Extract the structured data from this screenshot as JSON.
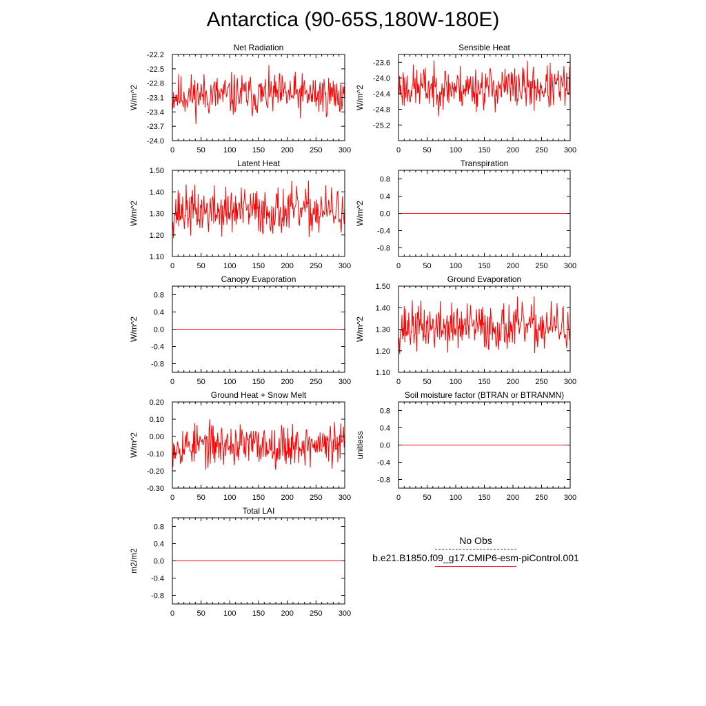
{
  "title": "Antarctica (90-65S,180W-180E)",
  "legend": {
    "obs_label": "No Obs",
    "obs_color": "#3a3a6a",
    "model_label": "b.e21.B1850.f09_g17.CMIP6-esm-piControl.001",
    "model_color": "#ff0000"
  },
  "line_color": "#ff0000",
  "chart_data": [
    {
      "type": "line",
      "title": "Net Radiation",
      "ylabel": "W/m^2",
      "xlim": [
        0,
        300
      ],
      "ylim": [
        -24.0,
        -22.2
      ],
      "xticks": [
        0,
        50,
        100,
        150,
        200,
        250,
        300
      ],
      "yticks": [
        -24.0,
        -23.7,
        -23.4,
        -23.1,
        -22.8,
        -22.5,
        -22.2
      ],
      "ytick_labels": [
        "-24.0",
        "-23.7",
        "-23.4",
        "-23.1",
        "-22.8",
        "-22.5",
        "-22.2"
      ],
      "series": [
        {
          "mean": -23.05,
          "amp": 0.22,
          "min": -23.85,
          "max": -22.32,
          "seed": 11
        }
      ]
    },
    {
      "type": "line",
      "title": "Sensible Heat",
      "ylabel": "W/m^2",
      "xlim": [
        0,
        300
      ],
      "ylim": [
        -25.6,
        -23.4
      ],
      "xticks": [
        0,
        50,
        100,
        150,
        200,
        250,
        300
      ],
      "yticks": [
        -25.2,
        -24.8,
        -24.4,
        -24.0,
        -23.6
      ],
      "ytick_labels": [
        "-25.2",
        "-24.8",
        "-24.4",
        "-24.0",
        "-23.6"
      ],
      "series": [
        {
          "mean": -24.25,
          "amp": 0.28,
          "min": -25.1,
          "max": -23.55,
          "seed": 23
        }
      ]
    },
    {
      "type": "line",
      "title": "Latent Heat",
      "ylabel": "W/m^2",
      "xlim": [
        0,
        300
      ],
      "ylim": [
        1.1,
        1.5
      ],
      "xticks": [
        0,
        50,
        100,
        150,
        200,
        250,
        300
      ],
      "yticks": [
        1.1,
        1.2,
        1.3,
        1.4,
        1.5
      ],
      "ytick_labels": [
        "1.10",
        "1.20",
        "1.30",
        "1.40",
        "1.50"
      ],
      "series": [
        {
          "mean": 1.31,
          "amp": 0.055,
          "min": 1.14,
          "max": 1.48,
          "seed": 37
        }
      ]
    },
    {
      "type": "line",
      "title": "Transpiration",
      "ylabel": "W/m^2",
      "xlim": [
        0,
        300
      ],
      "ylim": [
        -1.0,
        1.0
      ],
      "xticks": [
        0,
        50,
        100,
        150,
        200,
        250,
        300
      ],
      "yticks": [
        -0.8,
        -0.4,
        0.0,
        0.4,
        0.8
      ],
      "ytick_labels": [
        "-0.8",
        "-0.4",
        "0.0",
        "0.4",
        "0.8"
      ],
      "series": [
        {
          "constant": 0.0
        }
      ]
    },
    {
      "type": "line",
      "title": "Canopy Evaporation",
      "ylabel": "W/m^2",
      "xlim": [
        0,
        300
      ],
      "ylim": [
        -1.0,
        1.0
      ],
      "xticks": [
        0,
        50,
        100,
        150,
        200,
        250,
        300
      ],
      "yticks": [
        -0.8,
        -0.4,
        0.0,
        0.4,
        0.8
      ],
      "ytick_labels": [
        "-0.8",
        "-0.4",
        "0.0",
        "0.4",
        "0.8"
      ],
      "series": [
        {
          "constant": 0.0
        }
      ]
    },
    {
      "type": "line",
      "title": "Ground Evaporation",
      "ylabel": "W/m^2",
      "xlim": [
        0,
        300
      ],
      "ylim": [
        1.1,
        1.5
      ],
      "xticks": [
        0,
        50,
        100,
        150,
        200,
        250,
        300
      ],
      "yticks": [
        1.1,
        1.2,
        1.3,
        1.4,
        1.5
      ],
      "ytick_labels": [
        "1.10",
        "1.20",
        "1.30",
        "1.40",
        "1.50"
      ],
      "series": [
        {
          "mean": 1.31,
          "amp": 0.055,
          "min": 1.14,
          "max": 1.48,
          "seed": 37
        }
      ]
    },
    {
      "type": "line",
      "title": "Ground Heat + Snow Melt",
      "ylabel": "W/m^2",
      "xlim": [
        0,
        300
      ],
      "ylim": [
        -0.3,
        0.2
      ],
      "xticks": [
        0,
        50,
        100,
        150,
        200,
        250,
        300
      ],
      "yticks": [
        -0.3,
        -0.2,
        -0.1,
        0.0,
        0.1,
        0.2
      ],
      "ytick_labels": [
        "-0.30",
        "-0.20",
        "-0.10",
        "0.00",
        "0.10",
        "0.20"
      ],
      "series": [
        {
          "mean": -0.05,
          "amp": 0.06,
          "min": -0.22,
          "max": 0.1,
          "seed": 53
        }
      ]
    },
    {
      "type": "line",
      "title": "Soil moisture factor (BTRAN or BTRANMN)",
      "ylabel": "unitless",
      "xlim": [
        0,
        300
      ],
      "ylim": [
        -1.0,
        1.0
      ],
      "xticks": [
        0,
        50,
        100,
        150,
        200,
        250,
        300
      ],
      "yticks": [
        -0.8,
        -0.4,
        0.0,
        0.4,
        0.8
      ],
      "ytick_labels": [
        "-0.8",
        "-0.4",
        "0.0",
        "0.4",
        "0.8"
      ],
      "series": [
        {
          "constant": 0.0
        }
      ]
    },
    {
      "type": "line",
      "title": "Total LAI",
      "ylabel": "m2/m2",
      "xlim": [
        0,
        300
      ],
      "ylim": [
        -1.0,
        1.0
      ],
      "xticks": [
        0,
        50,
        100,
        150,
        200,
        250,
        300
      ],
      "yticks": [
        -0.8,
        -0.4,
        0.0,
        0.4,
        0.8
      ],
      "ytick_labels": [
        "-0.8",
        "-0.4",
        "0.0",
        "0.4",
        "0.8"
      ],
      "series": [
        {
          "constant": 0.0
        }
      ]
    }
  ]
}
